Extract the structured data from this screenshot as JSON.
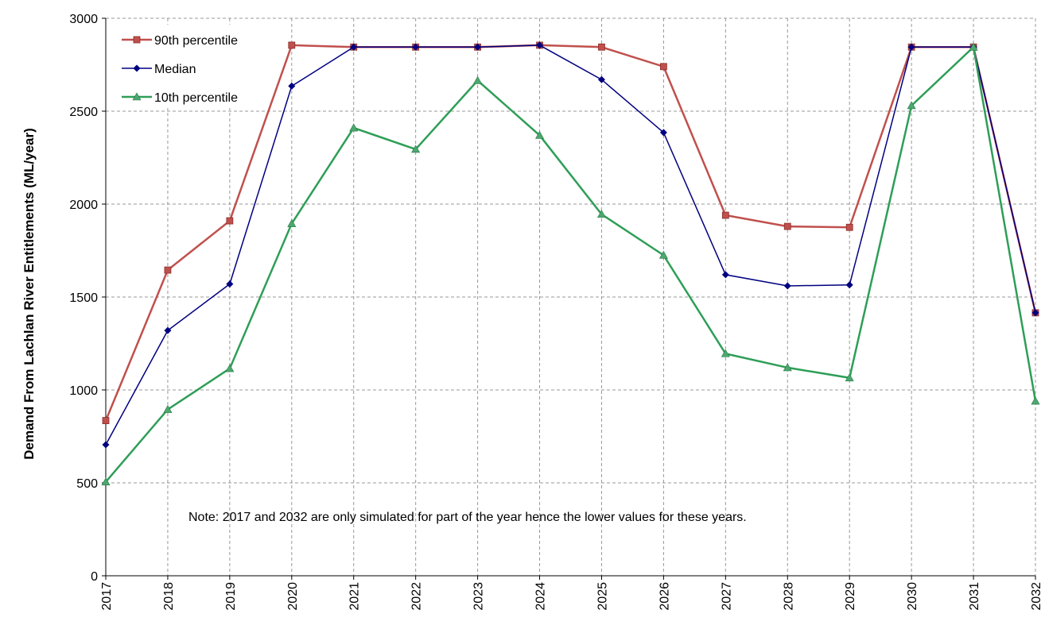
{
  "chart_data": {
    "type": "line",
    "title": "",
    "xlabel": "",
    "ylabel": "Demand From Lachlan River Entitlements (ML/year)",
    "categories": [
      "2017",
      "2018",
      "2019",
      "2020",
      "2021",
      "2022",
      "2023",
      "2024",
      "2025",
      "2026",
      "2027",
      "2028",
      "2029",
      "2030",
      "2031",
      "2032"
    ],
    "ylim": [
      0,
      3000
    ],
    "yticks": [
      0,
      500,
      1000,
      1500,
      2000,
      2500,
      3000
    ],
    "grid": true,
    "legend_position": "top-left",
    "series": [
      {
        "name": "90th percentile",
        "color": "#C0504D",
        "line_color": "#C0504D",
        "marker": "square",
        "values": [
          835,
          1645,
          1910,
          2855,
          2845,
          2845,
          2845,
          2855,
          2845,
          2740,
          1940,
          1880,
          1875,
          2845,
          2845,
          1415
        ]
      },
      {
        "name": "Median",
        "color": "#000080",
        "line_color": "#000080",
        "marker": "diamond",
        "values": [
          705,
          1320,
          1570,
          2635,
          2845,
          2845,
          2845,
          2855,
          2670,
          2385,
          1620,
          1560,
          1565,
          2845,
          2845,
          1415
        ]
      },
      {
        "name": "10th percentile",
        "color": "#4CA86F",
        "line_color": "#2E9E57",
        "marker": "triangle",
        "values": [
          505,
          895,
          1115,
          1895,
          2410,
          2295,
          2665,
          2370,
          1945,
          1725,
          1195,
          1120,
          1065,
          2530,
          2845,
          940
        ]
      }
    ],
    "annotation": "Note: 2017 and 2032 are only simulated for part of the year hence the lower values for these years."
  }
}
